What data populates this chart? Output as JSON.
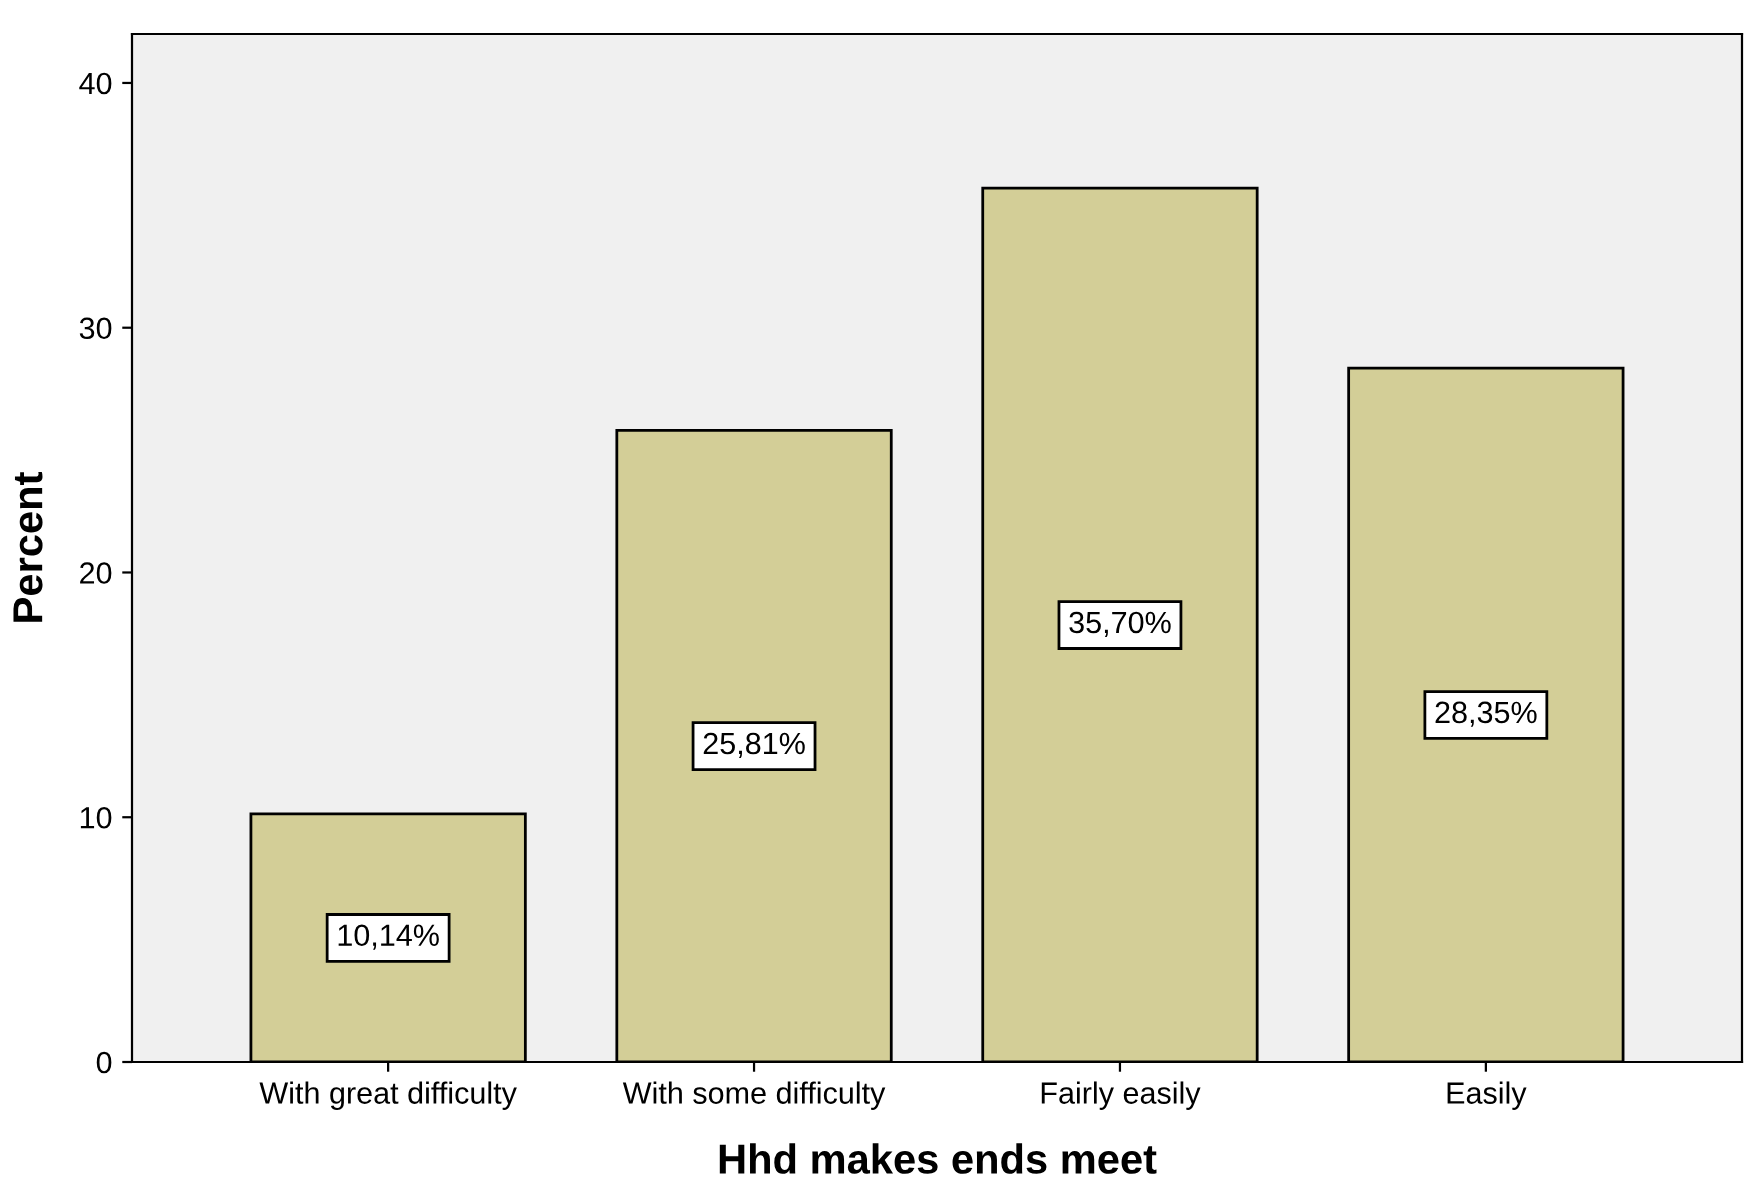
{
  "chart_data": {
    "type": "bar",
    "xlabel": "Hhd makes ends meet",
    "ylabel": "Percent",
    "categories": [
      "With great difficulty",
      "With some difficulty",
      "Fairly easily",
      "Easily"
    ],
    "values": [
      10.14,
      25.81,
      35.7,
      28.35
    ],
    "value_labels": [
      "10,14%",
      "25,81%",
      "35,70%",
      "28,35%"
    ],
    "color": "#d3ce97",
    "ylim": [
      0,
      42
    ],
    "yticks": [
      0,
      10,
      20,
      30,
      40
    ],
    "grid": false,
    "legend": false
  }
}
